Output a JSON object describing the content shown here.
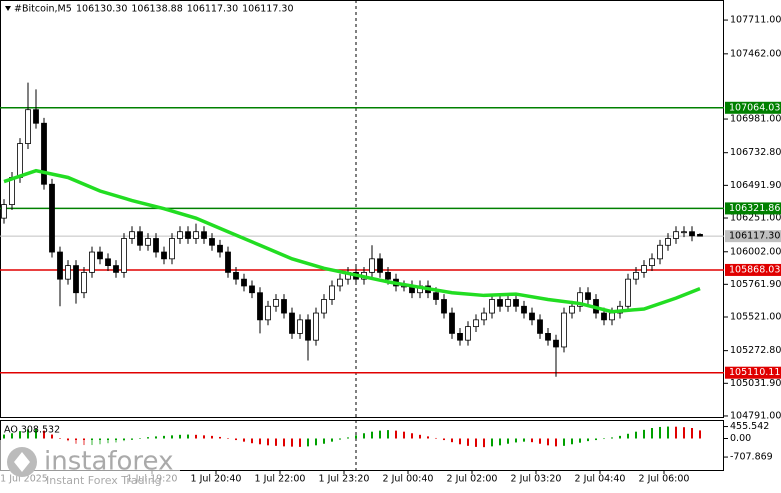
{
  "chart_data": {
    "type": "candlestick",
    "header": {
      "symbol": "#Bitcoin,M5",
      "quote": [
        "106130.30",
        "106138.88",
        "106117.30",
        "106117.30"
      ]
    },
    "x": [
      0,
      1,
      2,
      3,
      4,
      5,
      6,
      7,
      8,
      9,
      10,
      11,
      12,
      13,
      14,
      15,
      16,
      17,
      18,
      19,
      20,
      21,
      22,
      23,
      24,
      25,
      26,
      27,
      28,
      29,
      30,
      31,
      32,
      33,
      34,
      35,
      36,
      37,
      38,
      39,
      40,
      41,
      42,
      43,
      44,
      45,
      46,
      47,
      48,
      49,
      50,
      51,
      52,
      53,
      54,
      55,
      56,
      57,
      58,
      59,
      60,
      61,
      62,
      63,
      64,
      65,
      66,
      67,
      68,
      69,
      70,
      71,
      72,
      73,
      74,
      75,
      76,
      77,
      78,
      79,
      80,
      81,
      82,
      83,
      84,
      85,
      86,
      87
    ],
    "open": [
      106250,
      106350,
      106550,
      106800,
      107050,
      106950,
      106500,
      106000,
      105800,
      105900,
      105700,
      105850,
      106000,
      105950,
      105900,
      105850,
      106100,
      106150,
      106050,
      106100,
      106000,
      105950,
      106100,
      106150,
      106100,
      106150,
      106100,
      106050,
      106000,
      105850,
      105800,
      105750,
      105700,
      105500,
      105600,
      105650,
      105550,
      105400,
      105500,
      105350,
      105550,
      105650,
      105750,
      105800,
      105850,
      105800,
      105850,
      105950,
      105850,
      105800,
      105750,
      105750,
      105700,
      105750,
      105700,
      105650,
      105550,
      105400,
      105350,
      105450,
      105500,
      105550,
      105650,
      105600,
      105650,
      105600,
      105550,
      105500,
      105400,
      105350,
      105300,
      105550,
      105600,
      105700,
      105650,
      105550,
      105500,
      105550,
      105600,
      105800,
      105850,
      105900,
      105950,
      106050,
      106100,
      106150,
      106150,
      106130.3
    ],
    "high": [
      106390,
      106590,
      106840,
      107250,
      107200,
      106990,
      106540,
      106040,
      105940,
      105940,
      105890,
      106040,
      106040,
      105990,
      105940,
      106140,
      106190,
      106190,
      106140,
      106140,
      106040,
      106140,
      106190,
      106190,
      106210,
      106190,
      106140,
      106090,
      106040,
      105890,
      105840,
      105790,
      105740,
      105640,
      105690,
      105690,
      105590,
      105540,
      105540,
      105590,
      105690,
      105790,
      105840,
      105890,
      105890,
      105890,
      106050,
      105990,
      105890,
      105840,
      105790,
      105790,
      105790,
      105790,
      105740,
      105690,
      105590,
      105440,
      105490,
      105540,
      105590,
      105690,
      105690,
      105690,
      105690,
      105640,
      105590,
      105540,
      105440,
      105390,
      105590,
      105640,
      105740,
      105740,
      105690,
      105590,
      105590,
      105640,
      105840,
      105890,
      105940,
      105990,
      106090,
      106140,
      106190,
      106190,
      106190,
      106138.88
    ],
    "low": [
      106210,
      106310,
      106510,
      106760,
      106910,
      106460,
      105960,
      105600,
      105760,
      105620,
      105660,
      105810,
      105910,
      105860,
      105810,
      105810,
      106060,
      106010,
      106010,
      105960,
      105910,
      105910,
      106060,
      106060,
      106060,
      106060,
      106010,
      105960,
      105810,
      105760,
      105710,
      105660,
      105400,
      105460,
      105560,
      105510,
      105360,
      105360,
      105200,
      105310,
      105510,
      105610,
      105710,
      105760,
      105760,
      105760,
      105810,
      105810,
      105760,
      105710,
      105710,
      105660,
      105660,
      105660,
      105610,
      105510,
      105360,
      105310,
      105310,
      105410,
      105460,
      105510,
      105560,
      105560,
      105560,
      105510,
      105460,
      105360,
      105310,
      105080,
      105260,
      105510,
      105560,
      105610,
      105510,
      105460,
      105460,
      105510,
      105560,
      105760,
      105810,
      105860,
      105910,
      106010,
      106060,
      106110,
      106080,
      106117.3
    ],
    "close": [
      106350,
      106550,
      106800,
      107050,
      106950,
      106500,
      106000,
      105800,
      105900,
      105700,
      105850,
      106000,
      105950,
      105900,
      105850,
      106100,
      106150,
      106050,
      106100,
      106000,
      105950,
      106100,
      106150,
      106100,
      106150,
      106100,
      106050,
      106000,
      105850,
      105800,
      105750,
      105700,
      105500,
      105600,
      105650,
      105550,
      105400,
      105500,
      105350,
      105550,
      105650,
      105750,
      105800,
      105850,
      105800,
      105850,
      105950,
      105850,
      105800,
      105750,
      105750,
      105700,
      105750,
      105700,
      105650,
      105550,
      105400,
      105350,
      105450,
      105500,
      105550,
      105650,
      105600,
      105650,
      105600,
      105550,
      105500,
      105400,
      105350,
      105300,
      105550,
      105600,
      105700,
      105650,
      105550,
      105500,
      105550,
      105600,
      105800,
      105850,
      105900,
      105950,
      106050,
      106100,
      106150,
      106150,
      106120,
      106117.3
    ],
    "ma": {
      "color": "#22dd22",
      "x": [
        0,
        4,
        8,
        12,
        16,
        20,
        24,
        28,
        32,
        36,
        40,
        44,
        48,
        52,
        56,
        60,
        64,
        68,
        72,
        76,
        80,
        84,
        87
      ],
      "values": [
        106520,
        106600,
        106550,
        106450,
        106380,
        106320,
        106250,
        106150,
        106050,
        105950,
        105880,
        105830,
        105780,
        105740,
        105700,
        105680,
        105690,
        105650,
        105620,
        105560,
        105580,
        105660,
        105730
      ]
    },
    "levels": [
      {
        "value": 107064.03,
        "label": "107064.03",
        "color": "#008000"
      },
      {
        "value": 106321.86,
        "label": "106321.86",
        "color": "#008000"
      },
      {
        "value": 105868.03,
        "label": "105868.03",
        "color": "#e00000"
      },
      {
        "value": 105110.11,
        "label": "105110.11",
        "color": "#e00000"
      }
    ],
    "current": {
      "value": 106117.3,
      "label": "106117.30",
      "color": "#c0c0c0"
    },
    "xlim": [
      -0.5,
      90
    ],
    "ylim": [
      104776,
      107859
    ],
    "yticks": [
      {
        "value": 107711,
        "label": "107711.00"
      },
      {
        "value": 107462,
        "label": "107462.00"
      },
      {
        "value": 106981,
        "label": "106981.00"
      },
      {
        "value": 106732.8,
        "label": "106732.80"
      },
      {
        "value": 106491.9,
        "label": "106491.90"
      },
      {
        "value": 106251,
        "label": "106251.00"
      },
      {
        "value": 106002,
        "label": "106002.00"
      },
      {
        "value": 105761.9,
        "label": "105761.90"
      },
      {
        "value": 105521,
        "label": "105521.00"
      },
      {
        "value": 105272.8,
        "label": "105272.80"
      },
      {
        "value": 105031.9,
        "label": "105031.90"
      },
      {
        "value": 104791,
        "label": "104791.00"
      }
    ],
    "xticks": [
      {
        "value": 2.5,
        "label": "1 Jul 2025"
      },
      {
        "value": 18.5,
        "label": "1 Jul 19:20"
      },
      {
        "value": 26.5,
        "label": "1 Jul 20:40"
      },
      {
        "value": 34.5,
        "label": "1 Jul 22:00"
      },
      {
        "value": 42.5,
        "label": "1 Jul 23:20"
      },
      {
        "value": 50.5,
        "label": "2 Jul 00:40"
      },
      {
        "value": 58.5,
        "label": "2 Jul 02:00"
      },
      {
        "value": 66.5,
        "label": "2 Jul 03:20"
      },
      {
        "value": 74.5,
        "label": "2 Jul 04:40"
      },
      {
        "value": 82.5,
        "label": "2 Jul 06:00"
      }
    ],
    "ao": {
      "label": "AO 308.532",
      "up_color": "#00a000",
      "down_color": "#e00000",
      "values": [
        150,
        200,
        280,
        350,
        380,
        300,
        150,
        0,
        -100,
        -200,
        -250,
        -250,
        -220,
        -180,
        -150,
        -100,
        -50,
        0,
        50,
        80,
        100,
        120,
        140,
        150,
        140,
        120,
        100,
        60,
        0,
        -60,
        -120,
        -180,
        -220,
        -260,
        -280,
        -300,
        -310,
        -320,
        -300,
        -260,
        -200,
        -120,
        -40,
        40,
        120,
        200,
        260,
        300,
        320,
        300,
        260,
        200,
        140,
        80,
        20,
        -60,
        -140,
        -220,
        -280,
        -320,
        -330,
        -300,
        -260,
        -200,
        -150,
        -120,
        -140,
        -200,
        -260,
        -300,
        -280,
        -220,
        -160,
        -100,
        -60,
        -20,
        40,
        100,
        180,
        260,
        330,
        400,
        440,
        455,
        450,
        430,
        400,
        308.532
      ],
      "ylim": [
        -1201,
        667
      ],
      "yticks": [
        {
          "value": 455.542,
          "label": "455.542"
        },
        {
          "value": 0,
          "label": "0.00"
        },
        {
          "value": -707.869,
          "label": "-707.869"
        }
      ]
    },
    "logo": {
      "name": "instaforex",
      "tagline": "Instant Forex Trading"
    }
  }
}
